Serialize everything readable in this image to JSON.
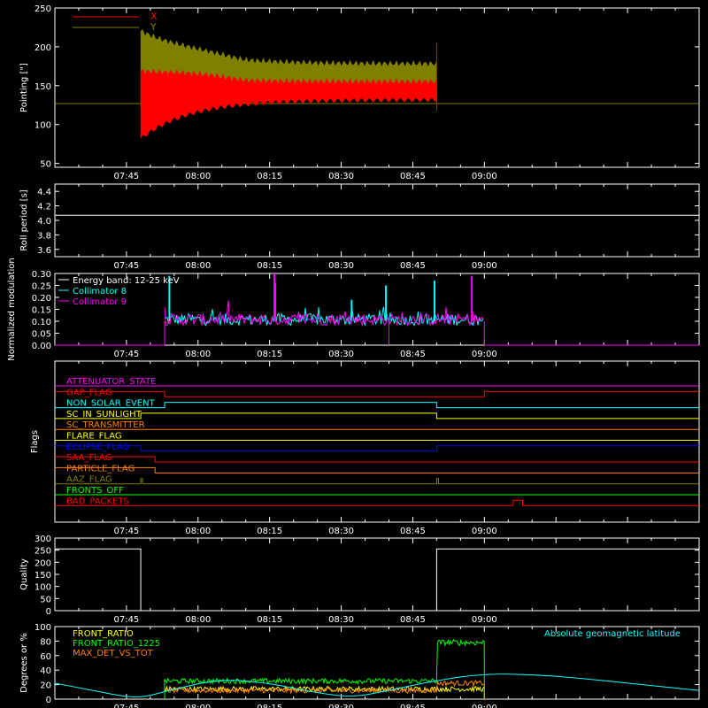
{
  "time_ticks": [
    "07:45",
    "08:00",
    "08:15",
    "08:30",
    "08:45",
    "09:00"
  ],
  "colors": {
    "background": "#000000",
    "axis": "#ffffff",
    "red": "#ff0000",
    "olive": "#808000",
    "cyan": "#00ffff",
    "magenta": "#ff00ff",
    "yellow": "#ffff00",
    "orange": "#ff8000",
    "blue": "#0000ff",
    "green": "#00ff00",
    "white": "#ffffff"
  },
  "chart_data": [
    {
      "id": "pointing",
      "type": "line",
      "ylabel": "Pointing [\"]",
      "ylim": [
        45,
        250
      ],
      "yticks": [
        "50",
        "100",
        "150",
        "200",
        "250"
      ],
      "xlim_minutes": [
        30,
        165
      ],
      "x_axis": "time of day, 07:30 to 09:45",
      "series": [
        {
          "name": "X",
          "color": "#ff0000",
          "active_band": {
            "start": "07:48",
            "end": "08:50",
            "low_start": 82,
            "low_mid": 110,
            "low_end": 132,
            "high_start": 170,
            "high_end": 155
          }
        },
        {
          "name": "Y",
          "color": "#808000",
          "active_band": {
            "start": "07:48",
            "end": "08:50",
            "low_start": 120,
            "low_mid": 140,
            "low_end": 140,
            "high_start": 225,
            "high_end": 178
          }
        }
      ],
      "baseline": 127
    },
    {
      "id": "roll_period",
      "type": "line",
      "ylabel": "Roll period [s]",
      "ylim": [
        3.5,
        4.5
      ],
      "yticks": [
        "3.6",
        "3.8",
        "4.0",
        "4.2",
        "4.4"
      ],
      "value": 4.07
    },
    {
      "id": "modulation",
      "type": "line",
      "ylabel": "Normalized modulation",
      "ylim": [
        0,
        0.3
      ],
      "yticks": [
        "0.00",
        "0.05",
        "0.10",
        "0.15",
        "0.20",
        "0.25",
        "0.30"
      ],
      "legend_title": "Energy band: 12-25 keV",
      "active": {
        "start": "07:53",
        "end": "09:00",
        "level": 0.1
      },
      "series": [
        {
          "name": "Collimator 8",
          "color": "#00ffff",
          "spikes": [
            {
              "t": "07:54",
              "v": 0.29
            },
            {
              "t": "08:32",
              "v": 0.19
            },
            {
              "t": "08:39",
              "v": 0.25
            },
            {
              "t": "08:49",
              "v": 0.27
            }
          ]
        },
        {
          "name": "Collimator 9",
          "color": "#ff00ff",
          "spikes": [
            {
              "t": "08:16",
              "v": 0.3
            },
            {
              "t": "08:16",
              "v": 0.26
            },
            {
              "t": "08:57",
              "v": 0.29
            }
          ]
        }
      ]
    },
    {
      "id": "flags",
      "type": "line",
      "ylabel": "Flags",
      "flags": [
        {
          "name": "ATTENUATOR_STATE",
          "color": "#ff00ff",
          "changes": []
        },
        {
          "name": "GAP_FLAG",
          "color": "#ff0000",
          "initial": 1,
          "changes": [
            {
              "t": "07:53",
              "v": 0
            },
            {
              "t": "09:00",
              "v": 1
            }
          ]
        },
        {
          "name": "NON_SOLAR_EVENT",
          "color": "#00ffff",
          "initial": 0,
          "changes": [
            {
              "t": "07:53",
              "v": 1
            },
            {
              "t": "08:50",
              "v": 0
            }
          ]
        },
        {
          "name": "SC_IN_SUNLIGHT",
          "color": "#ffff00",
          "initial": 0,
          "changes": [
            {
              "t": "07:48",
              "v": 1
            },
            {
              "t": "08:50",
              "v": 0
            }
          ]
        },
        {
          "name": "SC_TRANSMITTER",
          "color": "#ff8000",
          "changes": []
        },
        {
          "name": "FLARE_FLAG",
          "color": "#ffff00",
          "changes": []
        },
        {
          "name": "ECLIPSE_FLAG",
          "color": "#0000ff",
          "initial": 1,
          "changes": [
            {
              "t": "07:48",
              "v": 0
            },
            {
              "t": "08:50",
              "v": 1
            }
          ]
        },
        {
          "name": "SAA_FLAG",
          "color": "#ff0000",
          "initial": 1,
          "changes": [
            {
              "t": "07:51",
              "v": 0
            }
          ]
        },
        {
          "name": "PARTICLE_FLAG",
          "color": "#ff8000",
          "initial": 1,
          "changes": [
            {
              "t": "07:51",
              "v": 0
            }
          ]
        },
        {
          "name": "AAZ_FLAG",
          "color": "#808000",
          "pulses": [
            "07:48",
            "08:50"
          ]
        },
        {
          "name": "FRONTS_OFF",
          "color": "#00ff00",
          "changes": []
        },
        {
          "name": "BAD_PACKETS",
          "color": "#ff0000",
          "initial": 0,
          "changes": [
            {
              "t": "09:06",
              "v": 1
            },
            {
              "t": "09:08",
              "v": 0
            }
          ]
        }
      ]
    },
    {
      "id": "quality",
      "type": "line",
      "ylabel": "Quality",
      "ylim": [
        0,
        300
      ],
      "yticks": [
        "0",
        "50",
        "100",
        "150",
        "200",
        "250",
        "300"
      ],
      "segments": [
        {
          "start": "07:30",
          "end": "07:48",
          "value": 255
        },
        {
          "start": "07:48",
          "end": "08:50",
          "value": 0
        },
        {
          "start": "08:50",
          "end": "09:45",
          "value": 255
        }
      ]
    },
    {
      "id": "degrees_percent",
      "type": "line",
      "ylabel": "Degrees or %",
      "ylim": [
        0,
        100
      ],
      "yticks": [
        "0",
        "20",
        "40",
        "60",
        "80",
        "100"
      ],
      "annotation": "Absolute geomagnetic latitude",
      "series": [
        {
          "name": "FRONT_RATIO",
          "color": "#ffff00",
          "active": {
            "start": "07:53",
            "end": "09:00",
            "level": 14
          }
        },
        {
          "name": "FRONT_RATIO_1225",
          "color": "#00ff00",
          "active": {
            "start": "07:53",
            "end": "09:00",
            "level": 25
          },
          "high": {
            "start": "08:50",
            "end": "09:00",
            "level": 78
          }
        },
        {
          "name": "MAX_DET_VS_TOT",
          "color": "#ff8000",
          "active": {
            "start": "07:53",
            "end": "09:00",
            "level": 12
          },
          "high": {
            "start": "08:50",
            "end": "09:00",
            "level": 22
          }
        },
        {
          "name": "Absolute geomagnetic latitude",
          "color": "#00ffff",
          "curve": [
            {
              "t": "07:30",
              "v": 22
            },
            {
              "t": "07:38",
              "v": 12
            },
            {
              "t": "07:45",
              "v": 3
            },
            {
              "t": "07:49",
              "v": 3
            },
            {
              "t": "07:55",
              "v": 14
            },
            {
              "t": "08:05",
              "v": 28
            },
            {
              "t": "08:15",
              "v": 22
            },
            {
              "t": "08:23",
              "v": 11
            },
            {
              "t": "08:32",
              "v": 2
            },
            {
              "t": "08:40",
              "v": 12
            },
            {
              "t": "08:50",
              "v": 26
            },
            {
              "t": "09:00",
              "v": 35
            },
            {
              "t": "09:10",
              "v": 34
            },
            {
              "t": "09:20",
              "v": 29
            },
            {
              "t": "09:33",
              "v": 20
            },
            {
              "t": "09:45",
              "v": 12
            }
          ]
        }
      ]
    }
  ]
}
